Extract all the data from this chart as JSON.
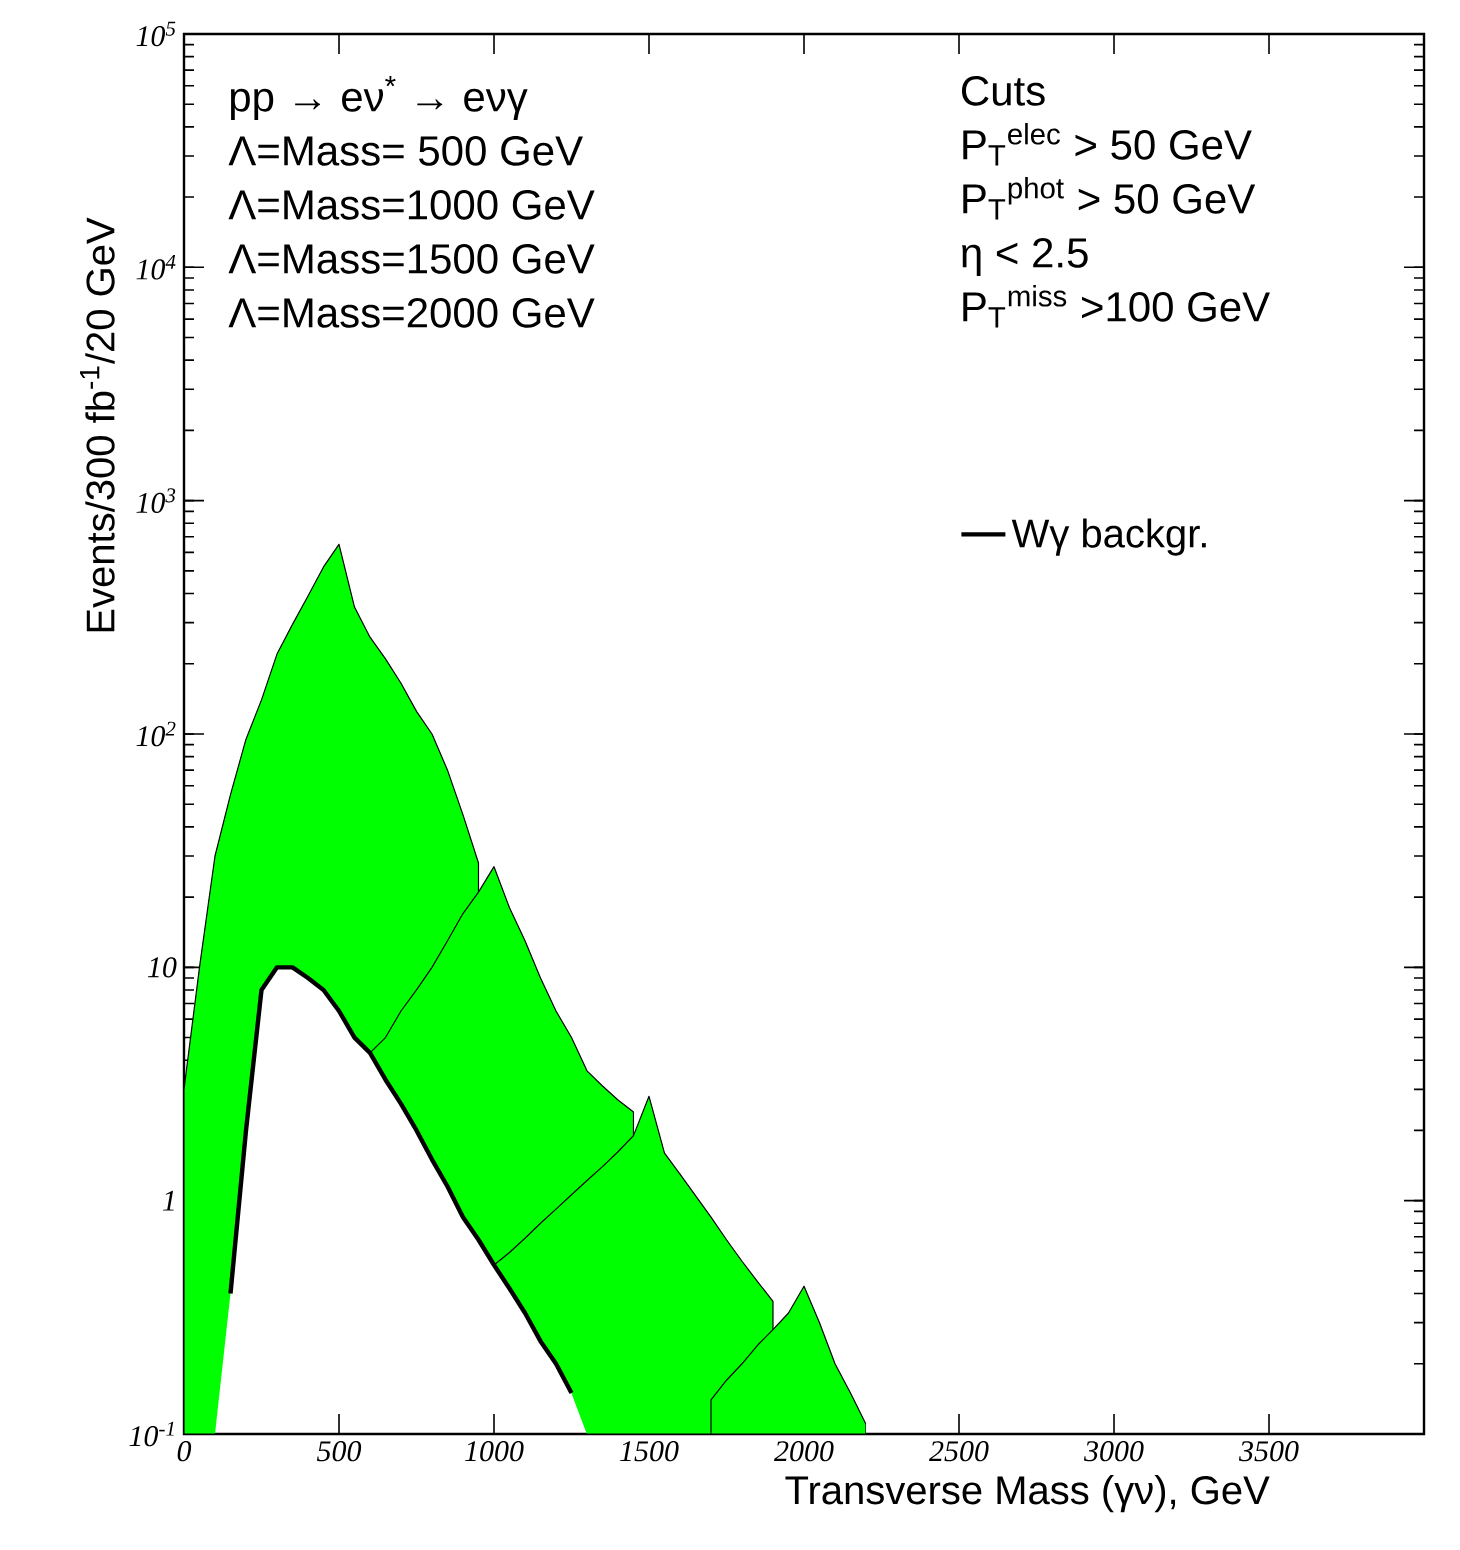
{
  "chart_data": {
    "type": "line",
    "xlabel": "Transverse Mass (γν), GeV",
    "ylabel": "Events/300 fb$^{-1}$/20 GeV",
    "log": "y",
    "legend": "top right",
    "xlim": [
      0,
      4000
    ],
    "xticks": [
      0,
      500,
      1000,
      1500,
      2000,
      2500,
      3000,
      3500
    ],
    "ylim": [
      0.1,
      100000
    ],
    "yticks": [
      {
        "value": 0.1,
        "label": "10$^{-1}$"
      },
      1,
      10,
      {
        "value": 100,
        "label": "10$^{2}$"
      },
      {
        "value": 1000,
        "label": "10$^{3}$"
      },
      {
        "value": 10000,
        "label": "10$^{4}$"
      },
      {
        "value": 100000,
        "label": "10$^{5}$"
      }
    ],
    "annotations": [
      "pp → eν$^{*}$ → eνγ",
      "Λ=Mass= 500 GeV",
      "Λ=Mass=1000 GeV",
      "Λ=Mass=1500 GeV",
      "Λ=Mass=2000 GeV",
      "Cuts",
      "P$_{T}$$^{elec}$ > 50 GeV",
      "P$_{T}$$^{phot}$ > 50 GeV",
      "η < 2.5",
      "P$_{T}$$^{miss}$ >100 GeV"
    ],
    "x": [
      0,
      50,
      100,
      150,
      200,
      250,
      300,
      350,
      400,
      450,
      500,
      550,
      600,
      650,
      700,
      750,
      800,
      850,
      900,
      950,
      1000,
      1050,
      1100,
      1150,
      1200,
      1250,
      1300,
      1350,
      1400,
      1450,
      1500,
      1550,
      1600,
      1650,
      1700,
      1750,
      1800,
      1850,
      1900,
      1950,
      2000,
      2050,
      2100,
      2150,
      2200
    ],
    "series": [
      {
        "type": "area",
        "color": "#00ff00",
        "values": [
          3,
          10,
          30,
          55,
          95,
          140,
          220,
          295,
          390,
          520,
          650,
          350,
          260,
          210,
          165,
          125,
          100,
          70,
          45,
          28,
          null,
          null,
          null,
          null,
          null,
          null,
          null,
          null,
          null,
          null,
          null,
          null,
          null,
          null,
          null,
          null,
          null,
          null,
          null,
          null,
          null,
          null,
          null,
          null,
          null
        ]
      },
      {
        "type": "area",
        "color": "#00ff00",
        "values": [
          null,
          null,
          null,
          null,
          null,
          null,
          null,
          null,
          null,
          null,
          null,
          null,
          4.3,
          5,
          6.5,
          8,
          10,
          13,
          17,
          21,
          27,
          18,
          13,
          9,
          6.5,
          5,
          3.6,
          3.1,
          2.7,
          2.4,
          null,
          null,
          null,
          null,
          null,
          null,
          null,
          null,
          null,
          null,
          null,
          null,
          null,
          null,
          null
        ]
      },
      {
        "type": "area",
        "color": "#00ff00",
        "values": [
          null,
          null,
          null,
          null,
          null,
          null,
          null,
          null,
          null,
          null,
          null,
          null,
          null,
          null,
          null,
          null,
          null,
          null,
          null,
          null,
          0.53,
          0.6,
          0.69,
          0.8,
          0.92,
          1.06,
          1.22,
          1.4,
          1.62,
          1.9,
          2.8,
          1.6,
          1.3,
          1.05,
          0.85,
          0.68,
          0.55,
          0.45,
          0.37,
          null,
          null,
          null,
          null,
          null,
          null
        ]
      },
      {
        "type": "area",
        "color": "#00ff00",
        "values": [
          null,
          null,
          null,
          null,
          null,
          null,
          null,
          null,
          null,
          null,
          null,
          null,
          null,
          null,
          null,
          null,
          null,
          null,
          null,
          null,
          null,
          null,
          null,
          null,
          null,
          null,
          null,
          null,
          null,
          null,
          null,
          null,
          null,
          null,
          0.14,
          0.17,
          0.2,
          0.24,
          0.28,
          0.33,
          0.43,
          0.3,
          0.2,
          0.15,
          0.11
        ]
      },
      {
        "name": "Wγ backgr.",
        "color": "#000000",
        "values": [
          null,
          null,
          null,
          0.4,
          2,
          8,
          10,
          10,
          9,
          8,
          6.5,
          5,
          4.3,
          3.3,
          2.6,
          2,
          1.5,
          1.15,
          0.85,
          0.68,
          0.53,
          0.42,
          0.33,
          0.25,
          0.2,
          0.15,
          null,
          null,
          null,
          null,
          null,
          null,
          null,
          null,
          null,
          null,
          null,
          null,
          null,
          null,
          null,
          null,
          null,
          null,
          null
        ]
      }
    ]
  }
}
